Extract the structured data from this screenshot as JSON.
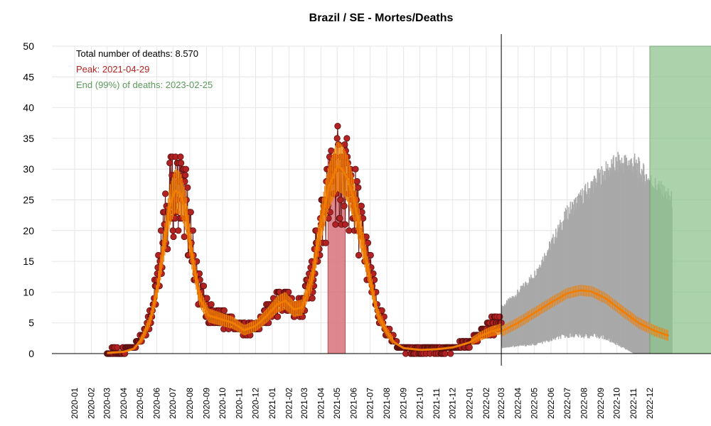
{
  "chart_data": {
    "type": "line",
    "title": "Brazil / SE - Mortes/Deaths",
    "xlabel": "",
    "ylabel": "",
    "ylim": [
      0,
      50
    ],
    "yticks": [
      0,
      5,
      10,
      15,
      20,
      25,
      30,
      35,
      40,
      45,
      50
    ],
    "x_range": [
      "2020-01-01",
      "2023-01-24"
    ],
    "xtick_labels": [
      "2020-01",
      "2020-02",
      "2020-03",
      "2020-04",
      "2020-05",
      "2020-06",
      "2020-07",
      "2020-08",
      "2020-09",
      "2020-10",
      "2020-11",
      "2020-12",
      "2021-01",
      "2021-02",
      "2021-03",
      "2021-04",
      "2021-05",
      "2021-06",
      "2021-07",
      "2021-08",
      "2021-09",
      "2021-10",
      "2021-11",
      "2021-12",
      "2022-01",
      "2022-02",
      "2022-03",
      "2022-04",
      "2022-05",
      "2022-06",
      "2022-07",
      "2022-08",
      "2022-09",
      "2022-10",
      "2022-11",
      "2022-12"
    ],
    "grid": true,
    "annotations": {
      "total": "Total number of deaths: 8.570",
      "peak": "Peak: 2021-04-29",
      "end": "End (99%) of deaths: 2023-02-25"
    },
    "today_line": "2022-03-01",
    "peak_band": [
      "2021-04-14",
      "2021-05-16"
    ],
    "end_band": [
      "2022-12-01",
      "2023-01-24"
    ],
    "colors": {
      "points": "#b22222",
      "points_border": "#5a1010",
      "observed_line": "#6b1a1a",
      "smooth": "#f07c00",
      "forecast_band": "#a9a9a9",
      "peak_band": "#d9737b",
      "end_band": "#8fc48f",
      "peak_text": "#b22222",
      "end_text": "#5a9a5a",
      "grid": "#e6e6e6"
    },
    "observed_anchors": [
      [
        "2020-03-01",
        0
      ],
      [
        "2020-04-01",
        0.5
      ],
      [
        "2020-04-20",
        1
      ],
      [
        "2020-05-05",
        3
      ],
      [
        "2020-05-20",
        6
      ],
      [
        "2020-06-01",
        11
      ],
      [
        "2020-06-15",
        20
      ],
      [
        "2020-06-25",
        25
      ],
      [
        "2020-07-05",
        26
      ],
      [
        "2020-07-15",
        27
      ],
      [
        "2020-07-25",
        24
      ],
      [
        "2020-08-05",
        17
      ],
      [
        "2020-08-20",
        10
      ],
      [
        "2020-09-05",
        6.5
      ],
      [
        "2020-10-01",
        5.5
      ],
      [
        "2020-10-20",
        5
      ],
      [
        "2020-11-10",
        4
      ],
      [
        "2020-12-01",
        4.5
      ],
      [
        "2020-12-20",
        6
      ],
      [
        "2021-01-10",
        8
      ],
      [
        "2021-01-25",
        8.5
      ],
      [
        "2021-02-10",
        7
      ],
      [
        "2021-02-25",
        7.5
      ],
      [
        "2021-03-15",
        12
      ],
      [
        "2021-04-01",
        21
      ],
      [
        "2021-04-15",
        26
      ],
      [
        "2021-05-01",
        29
      ],
      [
        "2021-05-15",
        28
      ],
      [
        "2021-06-01",
        25
      ],
      [
        "2021-06-15",
        20
      ],
      [
        "2021-07-01",
        13
      ],
      [
        "2021-07-15",
        7
      ],
      [
        "2021-08-01",
        4
      ],
      [
        "2021-08-15",
        2
      ],
      [
        "2021-09-01",
        0.8
      ],
      [
        "2021-10-01",
        0.6
      ],
      [
        "2021-11-01",
        0.7
      ],
      [
        "2021-12-01",
        0.9
      ],
      [
        "2022-01-01",
        1.8
      ],
      [
        "2022-01-20",
        3
      ],
      [
        "2022-02-10",
        4.5
      ],
      [
        "2022-02-28",
        5
      ]
    ],
    "smooth_anchors": [
      [
        "2020-03-01",
        0.1
      ],
      [
        "2020-04-01",
        0.3
      ],
      [
        "2020-04-20",
        0.8
      ],
      [
        "2020-05-05",
        2.5
      ],
      [
        "2020-05-20",
        5.5
      ],
      [
        "2020-06-01",
        10
      ],
      [
        "2020-06-15",
        18
      ],
      [
        "2020-06-25",
        24
      ],
      [
        "2020-07-05",
        26.5
      ],
      [
        "2020-07-15",
        26
      ],
      [
        "2020-07-25",
        23
      ],
      [
        "2020-08-05",
        16
      ],
      [
        "2020-08-20",
        9
      ],
      [
        "2020-09-05",
        6.2
      ],
      [
        "2020-10-01",
        5.5
      ],
      [
        "2020-10-20",
        5
      ],
      [
        "2020-11-10",
        3.8
      ],
      [
        "2020-12-01",
        4.5
      ],
      [
        "2020-12-20",
        6
      ],
      [
        "2021-01-10",
        8
      ],
      [
        "2021-01-25",
        8.6
      ],
      [
        "2021-02-10",
        7.2
      ],
      [
        "2021-02-25",
        7.5
      ],
      [
        "2021-03-15",
        12
      ],
      [
        "2021-04-01",
        21
      ],
      [
        "2021-04-15",
        27
      ],
      [
        "2021-05-01",
        30.5
      ],
      [
        "2021-05-10",
        30
      ],
      [
        "2021-05-20",
        28.5
      ],
      [
        "2021-06-01",
        25
      ],
      [
        "2021-06-15",
        19
      ],
      [
        "2021-07-01",
        12
      ],
      [
        "2021-07-15",
        6.5
      ],
      [
        "2021-08-01",
        3.5
      ],
      [
        "2021-08-15",
        1.8
      ],
      [
        "2021-09-01",
        0.9
      ],
      [
        "2021-10-01",
        0.6
      ],
      [
        "2021-11-01",
        0.7
      ],
      [
        "2021-12-01",
        1
      ],
      [
        "2022-01-01",
        1.8
      ],
      [
        "2022-01-20",
        2.8
      ],
      [
        "2022-02-10",
        3.6
      ],
      [
        "2022-02-28",
        4
      ]
    ],
    "forecast_anchors": [
      [
        "2022-03-01",
        3.6
      ],
      [
        "2022-04-01",
        5
      ],
      [
        "2022-05-01",
        6.6
      ],
      [
        "2022-06-01",
        8.3
      ],
      [
        "2022-07-01",
        9.8
      ],
      [
        "2022-07-25",
        10.3
      ],
      [
        "2022-08-15",
        10.1
      ],
      [
        "2022-09-10",
        9
      ],
      [
        "2022-10-10",
        7
      ],
      [
        "2022-11-10",
        5
      ],
      [
        "2022-12-10",
        3.7
      ],
      [
        "2023-01-05",
        2.9
      ]
    ],
    "band_upper_anchors": [
      [
        "2022-03-01",
        7.5
      ],
      [
        "2022-04-01",
        10
      ],
      [
        "2022-05-01",
        13
      ],
      [
        "2022-06-01",
        18
      ],
      [
        "2022-07-01",
        23
      ],
      [
        "2022-08-01",
        26
      ],
      [
        "2022-09-01",
        29
      ],
      [
        "2022-10-01",
        31
      ],
      [
        "2022-11-01",
        31
      ],
      [
        "2022-12-01",
        28
      ],
      [
        "2023-01-10",
        25
      ]
    ],
    "band_lower_anchors": [
      [
        "2022-03-01",
        1
      ],
      [
        "2022-05-01",
        1.5
      ],
      [
        "2022-07-01",
        3
      ],
      [
        "2022-09-01",
        2.8
      ],
      [
        "2022-10-01",
        1.5
      ],
      [
        "2022-11-01",
        0
      ],
      [
        "2023-01-10",
        0
      ]
    ]
  }
}
